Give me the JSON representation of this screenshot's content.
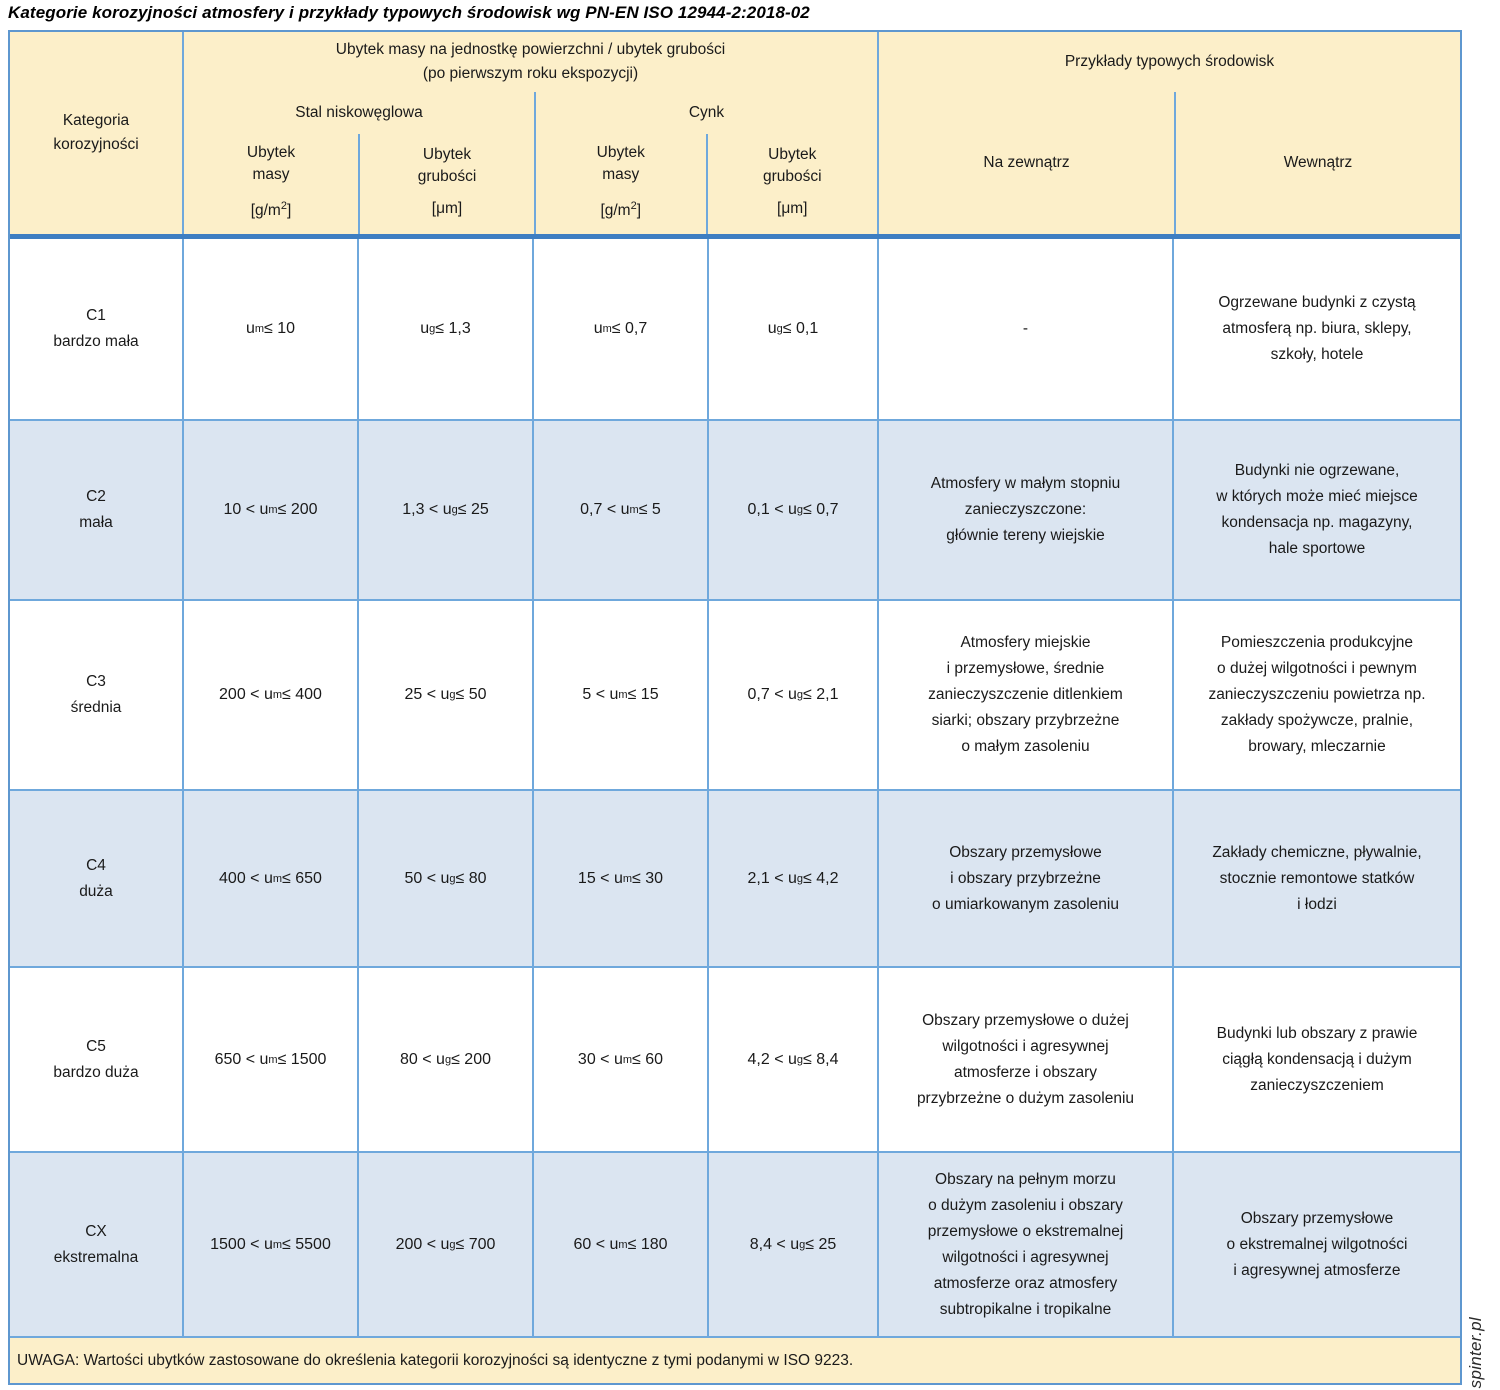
{
  "title": "Kategorie korozyjności atmosfery i przykłady typowych środowisk wg PN-EN ISO 12944-2:2018-02",
  "watermark": "spinter.pl",
  "colors": {
    "header_bg": "#FCEFC9",
    "alt_row_bg": "#DBE5F1",
    "grid_line": "#6FA8DC",
    "header_separator": "#3E7EC2"
  },
  "table": {
    "header": {
      "category": "Kategoria\nkorozyjności",
      "loss_group": "Ubytek masy na jednostkę powierzchni / ubytek grubości\n(po pierwszym roku ekspozycji)",
      "steel": "Stal niskowęglowa",
      "zinc": "Cynk",
      "mass": "Ubytek\nmasy",
      "thickness": "Ubytek\ngrubości",
      "mass_unit": "[g/m^2^]",
      "thickness_unit": "[μm]",
      "examples_group": "Przykłady typowych środowisk",
      "outdoor": "Na zewnątrz",
      "indoor": "Wewnątrz"
    },
    "rows": [
      {
        "category": "C1\nbardzo mała",
        "steel_mass": "u_m_ ≤ 10",
        "steel_thickness": "u_g_ ≤ 1,3",
        "zinc_mass": "u_m_ ≤ 0,7",
        "zinc_thickness": "u_g_ ≤ 0,1",
        "outdoor": "-",
        "indoor": "Ogrzewane budynki z czystą\natmosferą np. biura, sklepy,\nszkoły, hotele"
      },
      {
        "category": "C2\nmała",
        "steel_mass": "10 < u_m_ ≤ 200",
        "steel_thickness": "1,3 < u_g_ ≤ 25",
        "zinc_mass": "0,7 < u_m_ ≤ 5",
        "zinc_thickness": "0,1 < u_g_ ≤ 0,7",
        "outdoor": "Atmosfery w małym stopniu\nzanieczyszczone:\ngłównie tereny wiejskie",
        "indoor": "Budynki nie ogrzewane,\nw których może mieć miejsce\nkondensacja np. magazyny,\nhale sportowe"
      },
      {
        "category": "C3\nśrednia",
        "steel_mass": "200 < u_m_ ≤ 400",
        "steel_thickness": "25 < u_g_ ≤ 50",
        "zinc_mass": "5 < u_m_ ≤ 15",
        "zinc_thickness": "0,7 < u_g_ ≤ 2,1",
        "outdoor": "Atmosfery miejskie\ni przemysłowe, średnie\nzanieczyszczenie ditlenkiem\nsiarki; obszary przybrzeżne\no małym zasoleniu",
        "indoor": "Pomieszczenia produkcyjne\no dużej wilgotności i pewnym\nzanieczyszczeniu powietrza np.\nzakłady spożywcze, pralnie,\nbrowary, mleczarnie"
      },
      {
        "category": "C4\nduża",
        "steel_mass": "400 < u_m_ ≤ 650",
        "steel_thickness": "50 < u_g_ ≤ 80",
        "zinc_mass": "15 < u_m_ ≤ 30",
        "zinc_thickness": "2,1 < u_g_ ≤ 4,2",
        "outdoor": "Obszary przemysłowe\ni obszary przybrzeżne\no umiarkowanym zasoleniu",
        "indoor": "Zakłady chemiczne, pływalnie,\nstocznie remontowe statków\ni łodzi"
      },
      {
        "category": "C5\nbardzo duża",
        "steel_mass": "650 < u_m_ ≤ 1500",
        "steel_thickness": "80 < u_g_ ≤ 200",
        "zinc_mass": "30 < u_m_ ≤ 60",
        "zinc_thickness": "4,2 < u_g_ ≤ 8,4",
        "outdoor": "Obszary przemysłowe o dużej\nwilgotności i agresywnej\natmosferze i obszary\nprzybrzeżne o dużym zasoleniu",
        "indoor": "Budynki lub obszary z prawie\nciągłą kondensacją i dużym\nzanieczyszczeniem"
      },
      {
        "category": "CX\nekstremalna",
        "steel_mass": "1500 < u_m_ ≤ 5500",
        "steel_thickness": "200 < u_g_ ≤ 700",
        "zinc_mass": "60 < u_m_ ≤ 180",
        "zinc_thickness": "8,4 < u_g_ ≤ 25",
        "outdoor": "Obszary na pełnym morzu\no dużym zasoleniu i obszary\nprzemysłowe o ekstremalnej\nwilgotności i agresywnej\natmosferze oraz atmosfery\nsubtropikalne i tropikalne",
        "indoor": "Obszary przemysłowe\no ekstremalnej wilgotności\ni agresywnej atmosferze"
      }
    ],
    "note": "UWAGA: Wartości ubytków zastosowane do określenia kategorii korozyjności są identyczne z tymi podanymi w ISO 9223."
  }
}
